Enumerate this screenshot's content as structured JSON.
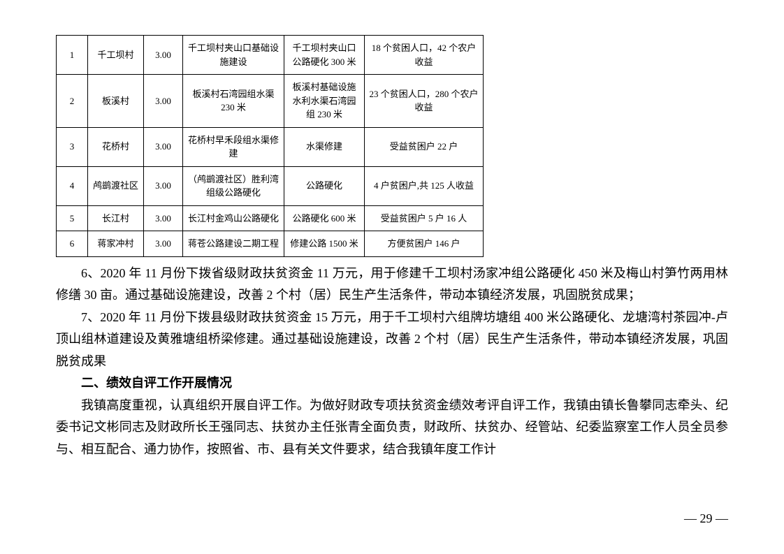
{
  "table": {
    "columns": [
      "idx",
      "village",
      "amount",
      "project",
      "detail",
      "benefit"
    ],
    "col_widths": [
      "col-idx",
      "col-village",
      "col-amount",
      "col-project",
      "col-detail",
      "col-benefit"
    ],
    "rows": [
      [
        "1",
        "千工坝村",
        "3.00",
        "千工坝村夹山口基础设施建设",
        "千工坝村夹山口公路硬化 300 米",
        "18 个贫困人口，42 个农户收益"
      ],
      [
        "2",
        "板溪村",
        "3.00",
        "板溪村石湾园组水渠 230 米",
        "板溪村基础设施水利水渠石湾园组 230 米",
        "23 个贫困人口，280 个农户收益"
      ],
      [
        "3",
        "花桥村",
        "3.00",
        "花桥村早禾段组水渠修建",
        "水渠修建",
        "受益贫困户 22 户"
      ],
      [
        "4",
        "鸬鹚渡社区",
        "3.00",
        "（鸬鹚渡社区）胜利湾组级公路硬化",
        "公路硬化",
        "4 户贫困户,共 125 人收益"
      ],
      [
        "5",
        "长江村",
        "3.00",
        "长江村金鸡山公路硬化",
        "公路硬化 600 米",
        "受益贫困户 5 户 16 人"
      ],
      [
        "6",
        "蒋家冲村",
        "3.00",
        "蒋苍公路建设二期工程",
        "修建公路 1500 米",
        "方便贫困户 146 户"
      ]
    ]
  },
  "paragraphs": {
    "p6": "6、2020 年 11 月份下拨省级财政扶贫资金 11 万元，用于修建千工坝村汤家冲组公路硬化 450 米及梅山村笋竹两用林修缮 30 亩。通过基础设施建设，改善 2 个村（居）民生产生活条件，带动本镇经济发展，巩固脱贫成果；",
    "p7": "7、2020 年 11 月份下拨县级财政扶贫资金 15 万元，用于千工坝村六组牌坊塘组 400 米公路硬化、龙塘湾村茶园冲-卢顶山组林道建设及黄雅塘组桥梁修建。通过基础设施建设，改善 2 个村（居）民生产生活条件，带动本镇经济发展，巩固脱贫成果",
    "heading2": "二、绩效自评工作开展情况",
    "p8": "我镇高度重视，认真组织开展自评工作。为做好财政专项扶贫资金绩效考评自评工作，我镇由镇长鲁攀同志牵头、纪委书记文彬同志及财政所长王强同志、扶贫办主任张青全面负责，财政所、扶贫办、经管站、纪委监察室工作人员全员参与、相互配合、通力协作，按照省、市、县有关文件要求，结合我镇年度工作计"
  },
  "page_number": "— 29 —"
}
